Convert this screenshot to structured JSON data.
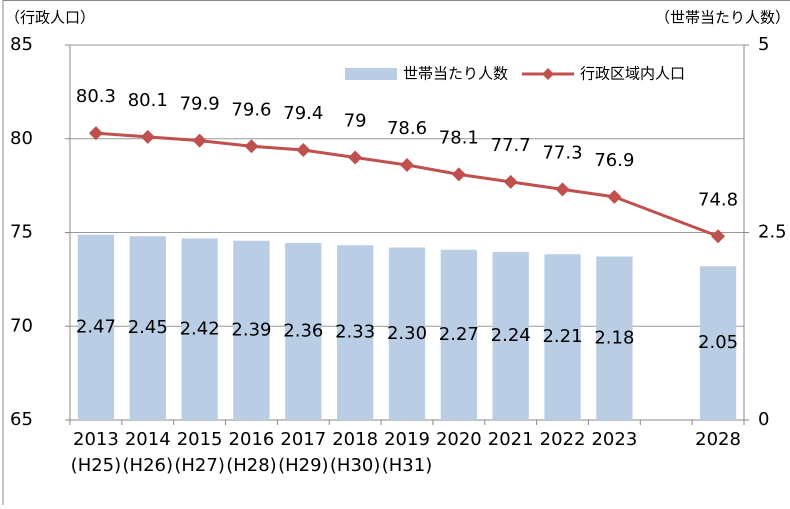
{
  "chart_data": {
    "type": "bar_line",
    "y_axis_title": "（行政人口）",
    "y2_axis_title": "（世帯当たり人数）",
    "categories": [
      "2013",
      "2014",
      "2015",
      "2016",
      "2017",
      "2018",
      "2019",
      "2020",
      "2021",
      "2022",
      "2023",
      null,
      "2028"
    ],
    "era_labels": [
      "(H25)",
      "(H26)",
      "(H27)",
      "(H28)",
      "(H29)",
      "(H30)",
      "(H31)",
      null,
      null,
      null,
      null,
      null,
      null
    ],
    "series": [
      {
        "name": "世帯当たり人数",
        "type": "bar",
        "axis": "y2",
        "color": "#b9cde5",
        "values": [
          2.47,
          2.45,
          2.42,
          2.39,
          2.36,
          2.33,
          2.3,
          2.27,
          2.24,
          2.21,
          2.18,
          null,
          2.05
        ],
        "value_labels": [
          "2.47",
          "2.45",
          "2.42",
          "2.39",
          "2.36",
          "2.33",
          "2.30",
          "2.27",
          "2.24",
          "2.21",
          "2.18",
          null,
          "2.05"
        ]
      },
      {
        "name": "行政区域内人口",
        "type": "line",
        "color": "#c0504d",
        "values": [
          80.3,
          80.1,
          79.9,
          79.6,
          79.4,
          79.0,
          78.6,
          78.1,
          77.7,
          77.3,
          76.9,
          null,
          74.8
        ]
      }
    ],
    "ylim": [
      65,
      85
    ],
    "yticks": [
      65,
      70,
      75,
      80,
      85
    ],
    "y2lim": [
      0,
      5
    ],
    "y2ticks": [
      0,
      2.5,
      5
    ],
    "grid": true,
    "legend": "top-right"
  }
}
